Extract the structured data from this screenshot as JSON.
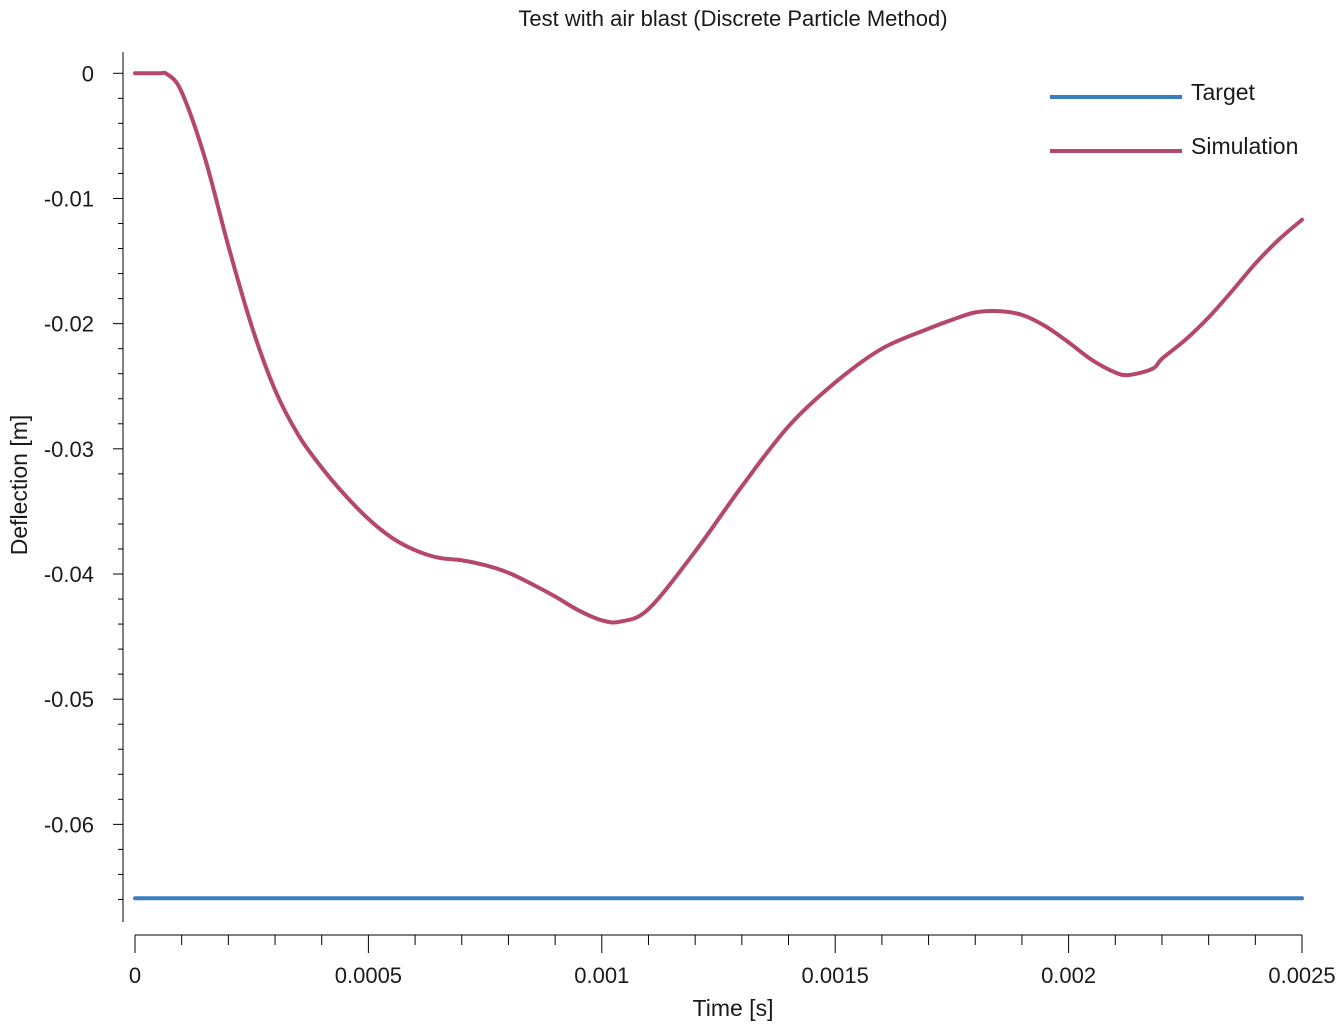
{
  "chart_data": {
    "type": "line",
    "title": "Test with air blast (Discrete Particle Method)",
    "xlabel": "Time [s]",
    "ylabel": "Deflection [m]",
    "xlim": [
      0,
      0.0025
    ],
    "ylim": [
      -0.0678,
      0.0017
    ],
    "x_ticks": [
      "0",
      "0.0005",
      "0.001",
      "0.0015",
      "0.002",
      "0.0025"
    ],
    "x_tick_values": [
      0,
      0.0005,
      0.001,
      0.0015,
      0.002,
      0.0025
    ],
    "y_ticks": [
      "0",
      "-0.01",
      "-0.02",
      "-0.03",
      "-0.04",
      "-0.05",
      "-0.06"
    ],
    "y_tick_values": [
      0,
      -0.01,
      -0.02,
      -0.03,
      -0.04,
      -0.05,
      -0.06
    ],
    "legend_position": "top-right",
    "grid": false,
    "series": [
      {
        "name": "Target",
        "color": "#3a7ebf",
        "x": [
          0,
          0.0025
        ],
        "y": [
          -0.0659,
          -0.0659
        ]
      },
      {
        "name": "Simulation",
        "color": "#b5486a",
        "x": [
          0,
          5e-05,
          7e-05,
          0.0001,
          0.00015,
          0.0002,
          0.00025,
          0.0003,
          0.00035,
          0.0004,
          0.00045,
          0.0005,
          0.00055,
          0.0006,
          0.00065,
          0.0007,
          0.00075,
          0.0008,
          0.00085,
          0.0009,
          0.00095,
          0.001,
          0.00104,
          0.0011,
          0.0012,
          0.0013,
          0.0014,
          0.0015,
          0.0016,
          0.0017,
          0.00175,
          0.0018,
          0.00185,
          0.0019,
          0.00195,
          0.002,
          0.00205,
          0.0021,
          0.00213,
          0.00218,
          0.0022,
          0.00225,
          0.0023,
          0.00235,
          0.0024,
          0.00245,
          0.0025
        ],
        "y": [
          0,
          0,
          -0.0001,
          -0.0015,
          -0.0068,
          -0.0138,
          -0.0202,
          -0.0253,
          -0.0289,
          -0.0315,
          -0.0337,
          -0.0356,
          -0.0371,
          -0.0381,
          -0.0387,
          -0.0389,
          -0.0393,
          -0.0399,
          -0.0408,
          -0.0418,
          -0.0429,
          -0.0437,
          -0.0438,
          -0.0428,
          -0.0382,
          -0.033,
          -0.0282,
          -0.0247,
          -0.022,
          -0.0204,
          -0.0197,
          -0.0191,
          -0.019,
          -0.0193,
          -0.0202,
          -0.0215,
          -0.0229,
          -0.0239,
          -0.0241,
          -0.0236,
          -0.0228,
          -0.0213,
          -0.0195,
          -0.0174,
          -0.0152,
          -0.0133,
          -0.0117
        ]
      }
    ]
  }
}
